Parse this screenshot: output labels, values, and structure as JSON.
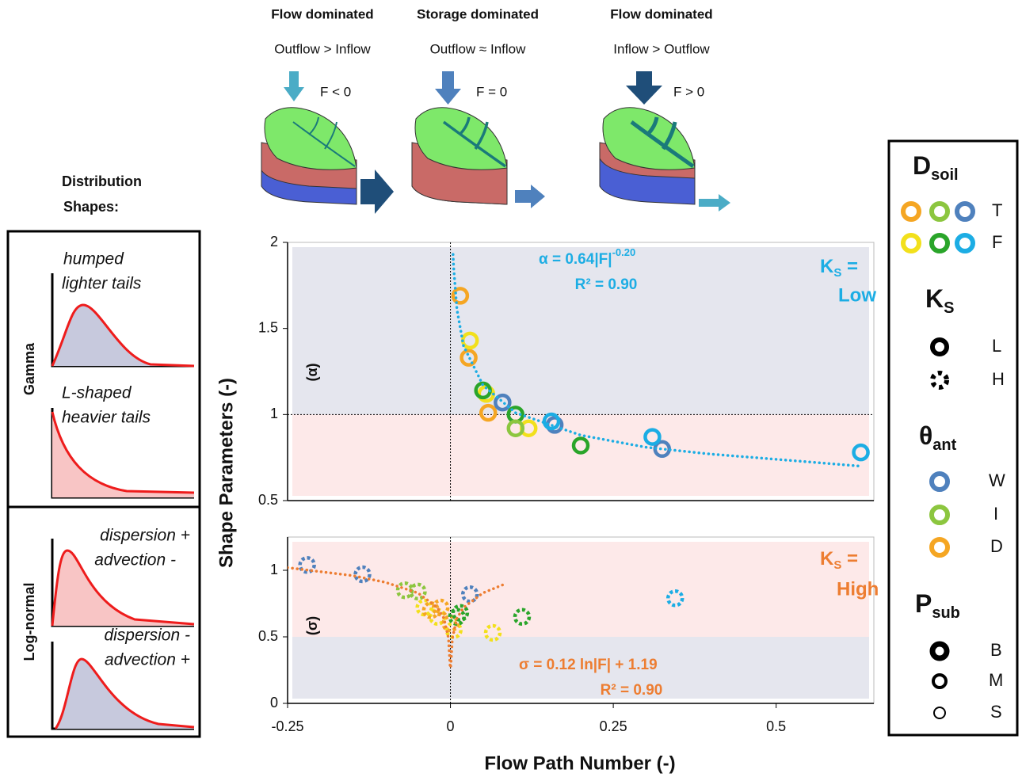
{
  "regimes": [
    {
      "title": "Flow dominated",
      "relation": "Outflow > Inflow",
      "flux": "F < 0"
    },
    {
      "title": "Storage dominated",
      "relation": "Outflow ≈ Inflow",
      "flux": "F = 0"
    },
    {
      "title": "Flow dominated",
      "relation": "Inflow > Outflow",
      "flux": "F > 0"
    }
  ],
  "distribution_shapes": {
    "title": [
      "Distribution",
      "Shapes:"
    ],
    "groups": [
      {
        "name": "Gamma",
        "shapes": [
          [
            "humped",
            "lighter tails"
          ],
          [
            "L-shaped",
            "heavier tails"
          ]
        ]
      },
      {
        "name": "Log-normal",
        "shapes": [
          [
            "dispersion +",
            "advection -"
          ],
          [
            "dispersion -",
            "advection +"
          ]
        ]
      }
    ]
  },
  "y_label": "Shape Parameters (-)",
  "x_label": "Flow Path Number (-)",
  "chart_data": [
    {
      "type": "scatter",
      "xlim": [
        -0.25,
        0.65
      ],
      "ylim": [
        0.5,
        2
      ],
      "yticks": [
        0.5,
        1,
        1.5,
        2
      ],
      "band_split": 1,
      "band_colors": [
        "#e5e6ee",
        "#fde9e9"
      ],
      "hline": 1,
      "vline": 0,
      "marker": "solid",
      "equation": "α = 0.64|F|",
      "equation_exponent": "-0.20",
      "r2": "R² = 0.90",
      "panel_label": "(α)",
      "ks_label": {
        "base": "K",
        "sub": "S",
        "eq": " =",
        "value": "Low"
      },
      "label_color": "#1cade4",
      "series": [
        {
          "color": "#f5a623",
          "x": [
            0.015,
            0.028,
            0.058
          ],
          "values": [
            1.69,
            1.33,
            1.01
          ]
        },
        {
          "color": "#f2e01c",
          "x": [
            0.03,
            0.055,
            0.12
          ],
          "values": [
            1.43,
            1.12,
            0.92
          ]
        },
        {
          "color": "#2aa52a",
          "x": [
            0.05,
            0.1,
            0.2
          ],
          "values": [
            1.14,
            1.0,
            0.82
          ]
        },
        {
          "color": "#8cc63f",
          "x": [
            0.1
          ],
          "values": [
            0.92
          ]
        },
        {
          "color": "#4f81bd",
          "x": [
            0.08,
            0.16,
            0.325
          ],
          "values": [
            1.07,
            0.94,
            0.8
          ]
        },
        {
          "color": "#1cade4",
          "x": [
            0.155,
            0.31,
            0.63
          ],
          "values": [
            0.96,
            0.87,
            0.78
          ]
        },
        {
          "color": "#1cade4",
          "mode": "line",
          "style": "dotted",
          "x": [
            0.004,
            0.005,
            0.01,
            0.02,
            0.05,
            0.1,
            0.2,
            0.3,
            0.4,
            0.5,
            0.63
          ],
          "values": [
            1.93,
            1.85,
            1.61,
            1.4,
            1.17,
            1.01,
            0.88,
            0.81,
            0.77,
            0.74,
            0.7
          ]
        }
      ]
    },
    {
      "type": "scatter",
      "xlim": [
        -0.25,
        0.65
      ],
      "ylim": [
        0,
        1.25
      ],
      "yticks": [
        0,
        0.5,
        1
      ],
      "xticks": [
        -0.25,
        0,
        0.25,
        0.5
      ],
      "band_split": 0.5,
      "band_colors": [
        "#fde9e9",
        "#e5e6ee"
      ],
      "vline": 0,
      "marker": "dashed",
      "equation": "σ = 0.12 ln|F| + 1.19",
      "r2": "R² = 0.90",
      "panel_label": "(σ)",
      "ks_label": {
        "base": "K",
        "sub": "S",
        "eq": " =",
        "value": "High"
      },
      "label_color": "#ed7d31",
      "series": [
        {
          "color": "#4f81bd",
          "x": [
            -0.22,
            -0.135,
            0.03
          ],
          "values": [
            1.04,
            0.97,
            0.82
          ]
        },
        {
          "color": "#8cc63f",
          "x": [
            -0.07,
            -0.05
          ],
          "values": [
            0.85,
            0.84
          ]
        },
        {
          "color": "#f2e01c",
          "x": [
            -0.04,
            -0.02,
            0.005,
            0.065
          ],
          "values": [
            0.72,
            0.65,
            0.55,
            0.53
          ]
        },
        {
          "color": "#f5a623",
          "x": [
            -0.03,
            0.0,
            -0.015
          ],
          "values": [
            0.7,
            0.6,
            0.72
          ]
        },
        {
          "color": "#2aa52a",
          "x": [
            0.01,
            0.015,
            0.11
          ],
          "values": [
            0.65,
            0.68,
            0.65
          ]
        },
        {
          "color": "#1cade4",
          "x": [
            0.345
          ],
          "values": [
            0.79
          ]
        },
        {
          "color": "#ed7d31",
          "mode": "line",
          "style": "dotted",
          "x": [
            -0.25,
            -0.15,
            -0.1,
            -0.05,
            -0.02,
            -0.01,
            -0.003,
            -0.0005,
            null,
            0.0005,
            0.003,
            0.01,
            0.02,
            0.05,
            0.08
          ],
          "values": [
            1.02,
            0.96,
            0.91,
            0.83,
            0.72,
            0.64,
            0.49,
            0.28,
            null,
            0.28,
            0.49,
            0.64,
            0.72,
            0.83,
            0.89
          ]
        }
      ]
    }
  ],
  "legend": {
    "groups": [
      {
        "title": "D",
        "sub": "soil",
        "items": [
          "T",
          "F"
        ]
      },
      {
        "title": "K",
        "sub": "S",
        "items": [
          "L",
          "H"
        ]
      },
      {
        "title": "θ",
        "sub": "ant",
        "items": [
          "W",
          "I",
          "D"
        ]
      },
      {
        "title": "P",
        "sub": "sub",
        "items": [
          "B",
          "M",
          "S"
        ]
      }
    ]
  }
}
